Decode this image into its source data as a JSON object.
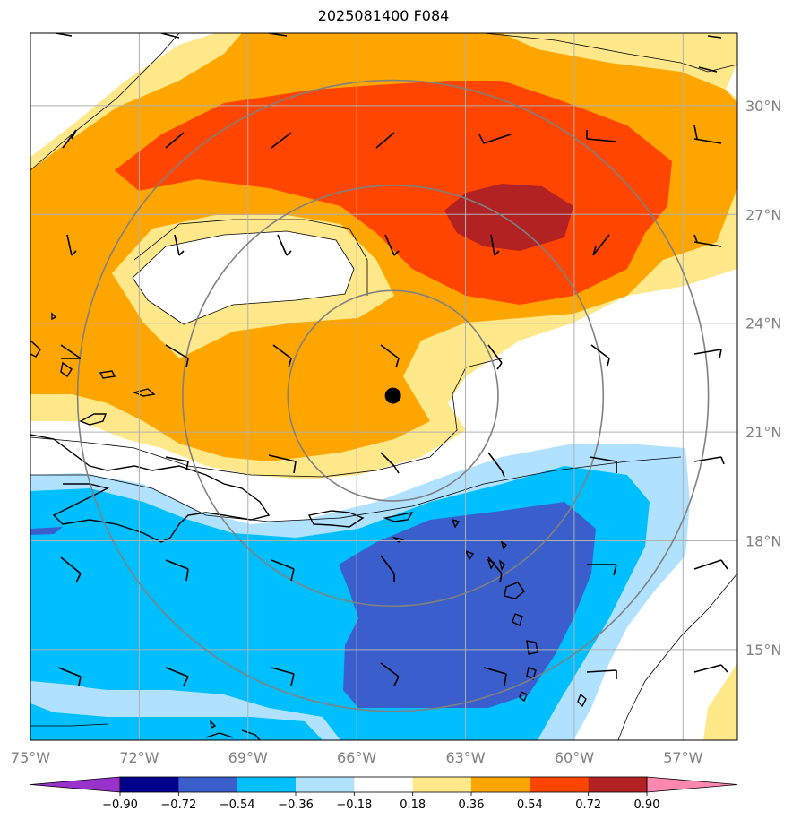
{
  "title": "2025081400 F084",
  "map": {
    "lon_range": [
      -75,
      -55.5
    ],
    "lat_range": [
      12.5,
      32
    ],
    "lon_ticks": [
      {
        "value": -75,
        "label": "75°W"
      },
      {
        "value": -72,
        "label": "72°W"
      },
      {
        "value": -69,
        "label": "69°W"
      },
      {
        "value": -66,
        "label": "66°W"
      },
      {
        "value": -63,
        "label": "63°W"
      },
      {
        "value": -60,
        "label": "60°W"
      },
      {
        "value": -57,
        "label": "57°W"
      }
    ],
    "lat_ticks": [
      {
        "value": 30,
        "label": "30°N"
      },
      {
        "value": 27,
        "label": "27°N"
      },
      {
        "value": 24,
        "label": "24°N"
      },
      {
        "value": 21,
        "label": "21°N"
      },
      {
        "value": 18,
        "label": "18°N"
      },
      {
        "value": 15,
        "label": "15°N"
      }
    ],
    "storm_center": {
      "lon": -65.0,
      "lat": 22.0
    },
    "range_rings_deg": [
      2.9,
      5.8,
      8.7
    ],
    "colors": {
      "land_outline": "#000000",
      "ring": "#808080",
      "grid": "#b0b0b0"
    }
  },
  "colorbar": {
    "levels": [
      -0.9,
      -0.72,
      -0.54,
      -0.36,
      -0.18,
      0.18,
      0.36,
      0.54,
      0.72,
      0.9
    ],
    "labels": [
      "−0.90",
      "−0.72",
      "−0.54",
      "−0.36",
      "−0.18",
      "0.18",
      "0.36",
      "0.54",
      "0.72",
      "0.90"
    ],
    "colors": [
      "#9932cc",
      "#00008b",
      "#3a5fcd",
      "#00bfff",
      "#b0e2ff",
      "#ffffff",
      "#ffe88a",
      "#ffa500",
      "#ff4500",
      "#b22222",
      "#ff88b0"
    ]
  }
}
